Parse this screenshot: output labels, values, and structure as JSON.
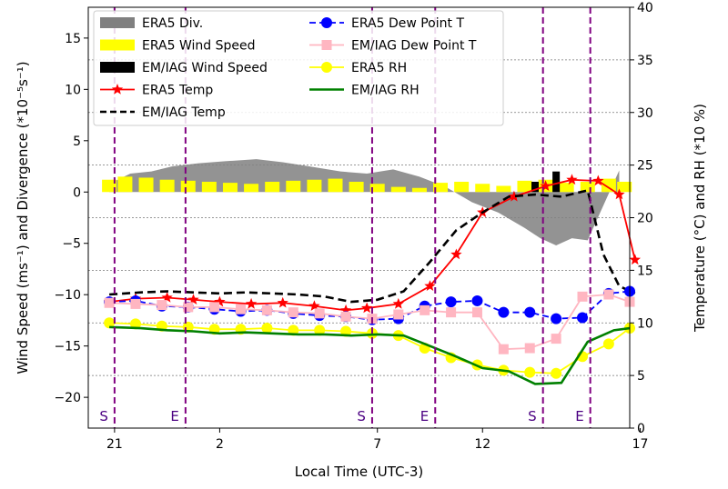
{
  "chart_data": {
    "type": "line",
    "xlabel": "Local Time (UTC-3)",
    "ylabel_left": "Wind Speed (ms⁻¹) and Divergence (*10⁻⁵s⁻¹)",
    "ylabel_right": "Temperature (°C) and RH (*10 %)",
    "xlim": [
      20.5,
      30.8
    ],
    "ylim_left": [
      -23,
      18
    ],
    "ylim_right": [
      0,
      40
    ],
    "x_ticks": [
      21,
      23,
      26,
      28,
      31
    ],
    "x_tick_labels": [
      "21",
      "2",
      "7",
      "12",
      "17"
    ],
    "y_left_ticks": [
      -20,
      -15,
      -10,
      -5,
      0,
      5,
      10,
      15
    ],
    "y_left_tick_labels": [
      "−20",
      "−15",
      "−10",
      "−5",
      "0",
      "5",
      "10",
      "15"
    ],
    "y_right_ticks": [
      0,
      5,
      10,
      15,
      20,
      25,
      30,
      35,
      40
    ],
    "y_right_tick_labels": [
      "0",
      "5",
      "10",
      "15",
      "20",
      "25",
      "30",
      "35",
      "40"
    ],
    "grid": "horizontal dotted on right axis",
    "legend_position": "upper-left",
    "vlines": [
      {
        "x": 21,
        "label": "S"
      },
      {
        "x": 22.35,
        "label": "E"
      },
      {
        "x": 25.9,
        "label": "S"
      },
      {
        "x": 27.1,
        "label": "E"
      },
      {
        "x": 29.15,
        "label": "S"
      },
      {
        "x": 30.05,
        "label": "E"
      }
    ],
    "series": [
      {
        "name": "ERA5 Div.",
        "kind": "area",
        "axis": "left",
        "color": "#808080",
        "x": [
          20.9,
          21.3,
          21.7,
          22.1,
          22.6,
          23.1,
          23.7,
          24.2,
          24.7,
          25.3,
          25.8,
          26.3,
          26.8,
          27.3,
          27.8,
          28.3,
          28.8,
          29.1,
          29.4,
          29.7,
          30.0,
          30.6
        ],
        "values": [
          0.8,
          1.8,
          2.0,
          2.5,
          2.8,
          3.0,
          3.2,
          2.9,
          2.5,
          2.0,
          1.8,
          2.2,
          1.5,
          0.5,
          -1.0,
          -2.0,
          -3.5,
          -4.5,
          -5.2,
          -4.5,
          -4.7,
          2.1
        ]
      },
      {
        "name": "ERA5 Wind Speed",
        "kind": "bar",
        "axis": "left",
        "color": "#ffff00",
        "x": [
          20.9,
          21.2,
          21.6,
          22.0,
          22.4,
          22.8,
          23.2,
          23.6,
          24.0,
          24.4,
          24.8,
          25.2,
          25.6,
          26.0,
          26.4,
          26.8,
          27.2,
          27.6,
          28.0,
          28.4,
          28.8,
          29.2,
          29.6,
          30.0,
          30.4,
          30.7
        ],
        "values": [
          1.2,
          1.5,
          1.4,
          1.2,
          1.1,
          1.0,
          0.9,
          0.8,
          1.0,
          1.1,
          1.2,
          1.3,
          1.0,
          0.8,
          0.5,
          0.4,
          0.9,
          1.0,
          0.8,
          0.6,
          1.1,
          1.2,
          0.9,
          1.0,
          1.3,
          1.0
        ]
      },
      {
        "name": "EM/IAG Wind Speed",
        "kind": "bar",
        "axis": "left",
        "color": "#000000",
        "x": [
          29.0,
          29.4
        ],
        "values": [
          1.0,
          2.0
        ]
      },
      {
        "name": "ERA5 Temp",
        "kind": "line",
        "axis": "right",
        "color": "#ff0000",
        "marker": "star",
        "dash": "solid",
        "x": [
          20.9,
          21.4,
          22.0,
          22.5,
          23.0,
          23.6,
          24.2,
          24.8,
          25.4,
          25.8,
          26.4,
          27.0,
          27.5,
          28.0,
          28.6,
          29.2,
          29.7,
          30.2,
          30.6,
          30.9
        ],
        "values": [
          12.0,
          12.3,
          12.4,
          12.2,
          12.0,
          11.8,
          11.9,
          11.6,
          11.2,
          11.4,
          11.8,
          13.5,
          16.5,
          20.5,
          22.0,
          23.0,
          23.6,
          23.5,
          22.2,
          16.0
        ]
      },
      {
        "name": "EM/IAG Temp",
        "kind": "line",
        "axis": "right",
        "color": "#000000",
        "marker": "none",
        "dash": "dashed",
        "x": [
          20.9,
          21.5,
          22.0,
          22.5,
          23.0,
          23.5,
          24.0,
          24.5,
          25.0,
          25.5,
          26.0,
          26.5,
          27.0,
          27.5,
          28.0,
          28.5,
          29.0,
          29.5,
          30.0,
          30.3,
          30.6,
          30.9
        ],
        "values": [
          12.7,
          12.9,
          13.0,
          12.9,
          12.8,
          12.9,
          12.8,
          12.7,
          12.5,
          12.0,
          12.2,
          13.0,
          15.8,
          18.8,
          20.5,
          22.0,
          22.2,
          22.0,
          22.6,
          16.5,
          13.5,
          12.8
        ]
      },
      {
        "name": "ERA5 Dew Point T",
        "kind": "line",
        "axis": "right",
        "color": "#0000ff",
        "marker": "circle",
        "dash": "dashed",
        "x": [
          20.9,
          21.4,
          21.9,
          22.4,
          22.9,
          23.4,
          23.9,
          24.4,
          24.9,
          25.4,
          25.9,
          26.4,
          26.9,
          27.4,
          27.9,
          28.4,
          28.9,
          29.4,
          29.9,
          30.4,
          30.8
        ],
        "values": [
          12.0,
          12.1,
          11.6,
          11.5,
          11.3,
          11.1,
          11.2,
          10.9,
          10.7,
          10.6,
          10.3,
          10.4,
          11.6,
          12.0,
          12.1,
          11.0,
          11.0,
          10.4,
          10.5,
          12.8,
          13.0
        ]
      },
      {
        "name": "EM/IAG Dew Point T",
        "kind": "line",
        "axis": "right",
        "color": "#ffb6c1",
        "marker": "square",
        "dash": "solid",
        "x": [
          20.9,
          21.4,
          21.9,
          22.4,
          22.9,
          23.4,
          23.9,
          24.4,
          24.9,
          25.4,
          25.9,
          26.4,
          26.9,
          27.4,
          27.9,
          28.4,
          28.9,
          29.4,
          29.9,
          30.4,
          30.8
        ],
        "values": [
          11.9,
          11.8,
          11.7,
          11.5,
          11.5,
          11.3,
          11.2,
          11.0,
          10.9,
          10.6,
          10.4,
          10.8,
          11.2,
          11.0,
          11.0,
          7.5,
          7.6,
          8.5,
          12.5,
          12.7,
          12.0
        ]
      },
      {
        "name": "ERA5 RH",
        "kind": "line",
        "axis": "right",
        "color": "#ffff00",
        "marker": "circle",
        "dash": "solid",
        "x": [
          20.9,
          21.4,
          21.9,
          22.4,
          22.9,
          23.4,
          23.9,
          24.4,
          24.9,
          25.4,
          25.9,
          26.4,
          26.9,
          27.4,
          27.9,
          28.4,
          28.9,
          29.4,
          29.9,
          30.4,
          30.8
        ],
        "values": [
          10.0,
          9.9,
          9.7,
          9.6,
          9.4,
          9.4,
          9.5,
          9.3,
          9.3,
          9.2,
          9.0,
          8.8,
          7.6,
          6.7,
          6.0,
          5.5,
          5.3,
          5.2,
          6.8,
          8.0,
          9.5
        ]
      },
      {
        "name": "EM/IAG RH",
        "kind": "line",
        "axis": "right",
        "color": "#008000",
        "marker": "none",
        "dash": "solid",
        "x": [
          20.9,
          21.5,
          22.0,
          22.5,
          23.0,
          23.5,
          24.0,
          24.5,
          25.0,
          25.5,
          26.0,
          26.5,
          27.0,
          27.5,
          28.0,
          28.5,
          29.0,
          29.5,
          30.0,
          30.5,
          30.8
        ],
        "values": [
          9.6,
          9.5,
          9.3,
          9.2,
          9.0,
          9.1,
          9.0,
          8.9,
          8.9,
          8.8,
          8.9,
          8.8,
          7.8,
          6.8,
          5.7,
          5.4,
          4.2,
          4.3,
          8.2,
          9.3,
          9.5
        ]
      }
    ]
  }
}
